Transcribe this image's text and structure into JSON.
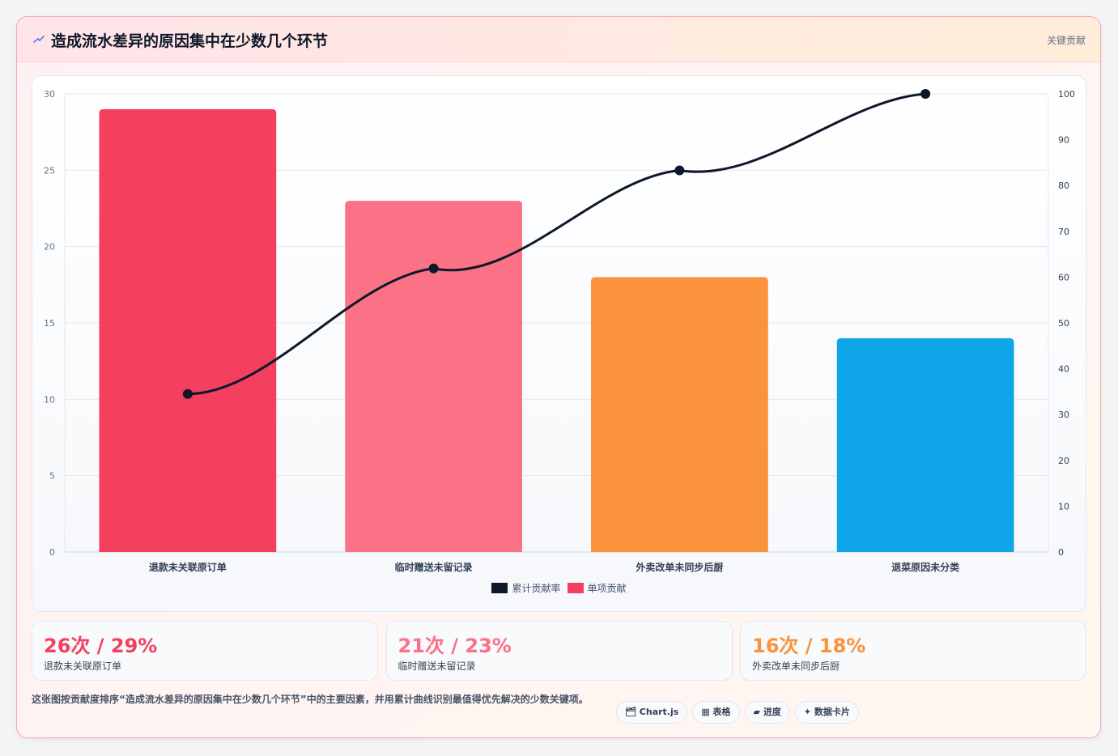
{
  "header": {
    "title": "造成流水差异的原因集中在少数几个环节",
    "tag": "关键贡献"
  },
  "colors": {
    "bars": [
      "#f43f5e",
      "#fb7185",
      "#fb923c",
      "#0ea5e9"
    ],
    "line": "#0f172a"
  },
  "chart_data": {
    "type": "bar",
    "categories": [
      "退款未关联原订单",
      "临时赠送未留记录",
      "外卖改单未同步后厨",
      "退菜原因未分类"
    ],
    "series": [
      {
        "name": "单项贡献",
        "type": "bar",
        "axis": "left",
        "values": [
          29,
          23,
          18,
          14
        ]
      },
      {
        "name": "累计贡献率",
        "type": "line",
        "axis": "right",
        "values": [
          34.5,
          61.9,
          83.3,
          100
        ]
      }
    ],
    "ylim": [
      0,
      30
    ],
    "y_ticks": [
      "0",
      "5",
      "10",
      "15",
      "20",
      "25",
      "30"
    ],
    "y2lim": [
      0,
      100
    ],
    "y2_ticks": [
      "0",
      "10",
      "20",
      "30",
      "40",
      "50",
      "60",
      "70",
      "80",
      "90",
      "100"
    ],
    "grid": true,
    "legend": "bottom"
  },
  "legend": [
    {
      "label": "累计贡献率",
      "color": "#0f172a"
    },
    {
      "label": "单项贡献",
      "color": "#f43f5e"
    }
  ],
  "stats": [
    {
      "value": "26次 / 29%",
      "label": "退款未关联原订单",
      "color": "#f43f5e"
    },
    {
      "value": "21次 / 23%",
      "label": "临时赠送未留记录",
      "color": "#fb7185"
    },
    {
      "value": "16次 / 18%",
      "label": "外卖改单未同步后厨",
      "color": "#fb923c"
    }
  ],
  "description": "这张图按贡献度排序“造成流水差异的原因集中在少数几个环节”中的主要因素，并用累计曲线识别最值得优先解决的少数关键项。",
  "chips": [
    "🗂 Chart.js",
    "▦ 表格",
    "▰ 进度",
    "✦ 数据卡片"
  ]
}
